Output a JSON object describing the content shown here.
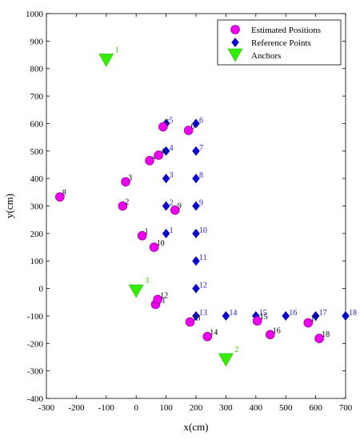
{
  "chart_data": {
    "type": "scatter",
    "xlabel": "x(cm)",
    "ylabel": "y(cm)",
    "xlim": [
      -300,
      700
    ],
    "ylim": [
      -400,
      1000
    ],
    "xticks": [
      -300,
      -200,
      -100,
      0,
      100,
      200,
      300,
      400,
      500,
      600,
      700
    ],
    "yticks": [
      -400,
      -300,
      -200,
      -100,
      0,
      100,
      200,
      300,
      400,
      500,
      600,
      700,
      800,
      900,
      1000
    ],
    "grid": false,
    "legend_position": "top-right",
    "colors": {
      "estimated": "#ee00ee",
      "reference": "#0a0ac8",
      "anchors": "#33ee00",
      "estimated_label": "#000000",
      "reference_label": "#2222cc",
      "anchor_label": "#33cc00"
    },
    "series": [
      {
        "name": "Estimated Positions",
        "marker": "circle",
        "points": [
          {
            "x": 20,
            "y": 192,
            "label": "1"
          },
          {
            "x": -45,
            "y": 300,
            "label": "2"
          },
          {
            "x": -35,
            "y": 388,
            "label": "3"
          },
          {
            "x": 45,
            "y": 465,
            "label": "4"
          },
          {
            "x": 75,
            "y": 485,
            "label": "4"
          },
          {
            "x": 90,
            "y": 588,
            "label": "5"
          },
          {
            "x": 175,
            "y": 575,
            "label": "6"
          },
          {
            "x": -255,
            "y": 333,
            "label": "8"
          },
          {
            "x": 130,
            "y": 285,
            "label": "9"
          },
          {
            "x": 60,
            "y": 150,
            "label": "10"
          },
          {
            "x": 65,
            "y": -58,
            "label": "11"
          },
          {
            "x": 72,
            "y": -40,
            "label": "12"
          },
          {
            "x": 180,
            "y": -122,
            "label": "13"
          },
          {
            "x": 238,
            "y": -175,
            "label": "14"
          },
          {
            "x": 405,
            "y": -118,
            "label": "15"
          },
          {
            "x": 448,
            "y": -168,
            "label": "16"
          },
          {
            "x": 575,
            "y": -125,
            "label": "17"
          },
          {
            "x": 612,
            "y": -182,
            "label": "18"
          }
        ]
      },
      {
        "name": "Reference Points",
        "marker": "diamond",
        "points": [
          {
            "x": 100,
            "y": 200,
            "label": "1"
          },
          {
            "x": 100,
            "y": 300,
            "label": "2"
          },
          {
            "x": 100,
            "y": 400,
            "label": "3"
          },
          {
            "x": 100,
            "y": 500,
            "label": "4"
          },
          {
            "x": 100,
            "y": 600,
            "label": "5"
          },
          {
            "x": 200,
            "y": 600,
            "label": "6"
          },
          {
            "x": 200,
            "y": 500,
            "label": "7"
          },
          {
            "x": 200,
            "y": 400,
            "label": "8"
          },
          {
            "x": 200,
            "y": 300,
            "label": "9"
          },
          {
            "x": 200,
            "y": 200,
            "label": "10"
          },
          {
            "x": 200,
            "y": 100,
            "label": "11"
          },
          {
            "x": 200,
            "y": 0,
            "label": "12"
          },
          {
            "x": 200,
            "y": -100,
            "label": "13"
          },
          {
            "x": 300,
            "y": -100,
            "label": "14"
          },
          {
            "x": 400,
            "y": -100,
            "label": "15"
          },
          {
            "x": 500,
            "y": -100,
            "label": "16"
          },
          {
            "x": 600,
            "y": -100,
            "label": "17"
          },
          {
            "x": 700,
            "y": -100,
            "label": "18"
          }
        ]
      },
      {
        "name": "Anchors",
        "marker": "triangle-down",
        "points": [
          {
            "x": -100,
            "y": 830,
            "label": "1"
          },
          {
            "x": 300,
            "y": -260,
            "label": "2"
          },
          {
            "x": 0,
            "y": -10,
            "label": "3"
          }
        ]
      }
    ]
  }
}
